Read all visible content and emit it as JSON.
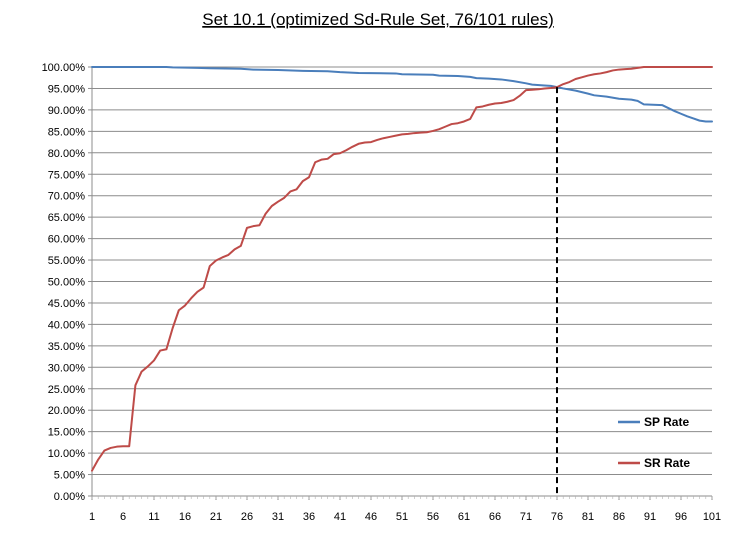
{
  "chart_data": {
    "type": "line",
    "title": "Set 10.1 (optimized Sd-Rule Set, 76/101 rules)",
    "xlabel": "",
    "ylabel": "",
    "x_range": [
      1,
      101
    ],
    "ylim": [
      0,
      100
    ],
    "y_ticks": [
      "0.00%",
      "5.00%",
      "10.00%",
      "15.00%",
      "20.00%",
      "25.00%",
      "30.00%",
      "35.00%",
      "40.00%",
      "45.00%",
      "50.00%",
      "55.00%",
      "60.00%",
      "65.00%",
      "70.00%",
      "75.00%",
      "80.00%",
      "85.00%",
      "90.00%",
      "95.00%",
      "100.00%"
    ],
    "x_ticks": [
      "1",
      "6",
      "11",
      "16",
      "21",
      "26",
      "31",
      "36",
      "41",
      "46",
      "51",
      "56",
      "61",
      "66",
      "71",
      "76",
      "81",
      "86",
      "91",
      "96",
      "101"
    ],
    "grid": "horizontal",
    "legend_position": "right",
    "reference_line": {
      "x": 76,
      "style": "dashed"
    },
    "series": [
      {
        "name": "SP Rate",
        "color": "#4a7ebb",
        "points": [
          [
            1,
            100.0
          ],
          [
            13,
            100.0
          ],
          [
            14,
            99.9
          ],
          [
            18,
            99.8
          ],
          [
            20,
            99.7
          ],
          [
            25,
            99.6
          ],
          [
            27,
            99.4
          ],
          [
            31,
            99.3
          ],
          [
            35,
            99.1
          ],
          [
            39,
            99.0
          ],
          [
            41,
            98.8
          ],
          [
            44,
            98.6
          ],
          [
            50,
            98.5
          ],
          [
            51,
            98.3
          ],
          [
            56,
            98.2
          ],
          [
            57,
            98.0
          ],
          [
            60,
            97.9
          ],
          [
            62,
            97.7
          ],
          [
            63,
            97.4
          ],
          [
            65,
            97.3
          ],
          [
            67,
            97.1
          ],
          [
            69,
            96.7
          ],
          [
            71,
            96.2
          ],
          [
            72,
            95.9
          ],
          [
            74,
            95.7
          ],
          [
            75,
            95.6
          ],
          [
            76,
            95.3
          ],
          [
            77,
            95.0
          ],
          [
            79,
            94.5
          ],
          [
            81,
            93.8
          ],
          [
            82,
            93.4
          ],
          [
            84,
            93.1
          ],
          [
            86,
            92.6
          ],
          [
            88,
            92.4
          ],
          [
            89,
            92.1
          ],
          [
            90,
            91.3
          ],
          [
            93,
            91.1
          ],
          [
            94,
            90.4
          ],
          [
            95,
            89.7
          ],
          [
            96,
            89.1
          ],
          [
            97,
            88.5
          ],
          [
            98,
            88.0
          ],
          [
            99,
            87.5
          ],
          [
            100,
            87.3
          ],
          [
            101,
            87.3
          ]
        ]
      },
      {
        "name": "SR Rate",
        "color": "#be4b48",
        "points": [
          [
            1,
            5.9
          ],
          [
            2,
            8.5
          ],
          [
            3,
            10.6
          ],
          [
            4,
            11.2
          ],
          [
            5,
            11.5
          ],
          [
            6,
            11.6
          ],
          [
            7,
            11.6
          ],
          [
            8,
            25.8
          ],
          [
            9,
            29.0
          ],
          [
            10,
            30.2
          ],
          [
            11,
            31.6
          ],
          [
            12,
            33.9
          ],
          [
            13,
            34.2
          ],
          [
            14,
            39.1
          ],
          [
            15,
            43.3
          ],
          [
            16,
            44.4
          ],
          [
            17,
            46.1
          ],
          [
            18,
            47.6
          ],
          [
            19,
            48.6
          ],
          [
            20,
            53.6
          ],
          [
            21,
            54.9
          ],
          [
            22,
            55.6
          ],
          [
            23,
            56.2
          ],
          [
            24,
            57.5
          ],
          [
            25,
            58.3
          ],
          [
            26,
            62.5
          ],
          [
            27,
            62.9
          ],
          [
            28,
            63.1
          ],
          [
            29,
            65.8
          ],
          [
            30,
            67.6
          ],
          [
            31,
            68.6
          ],
          [
            32,
            69.5
          ],
          [
            33,
            71.0
          ],
          [
            34,
            71.5
          ],
          [
            35,
            73.4
          ],
          [
            36,
            74.3
          ],
          [
            37,
            77.8
          ],
          [
            38,
            78.4
          ],
          [
            39,
            78.6
          ],
          [
            40,
            79.7
          ],
          [
            41,
            79.9
          ],
          [
            42,
            80.6
          ],
          [
            43,
            81.4
          ],
          [
            44,
            82.1
          ],
          [
            45,
            82.4
          ],
          [
            46,
            82.5
          ],
          [
            47,
            83.0
          ],
          [
            48,
            83.4
          ],
          [
            49,
            83.7
          ],
          [
            50,
            84.0
          ],
          [
            51,
            84.3
          ],
          [
            52,
            84.4
          ],
          [
            53,
            84.6
          ],
          [
            54,
            84.7
          ],
          [
            55,
            84.8
          ],
          [
            56,
            85.1
          ],
          [
            57,
            85.5
          ],
          [
            58,
            86.1
          ],
          [
            59,
            86.7
          ],
          [
            60,
            86.9
          ],
          [
            61,
            87.3
          ],
          [
            62,
            87.9
          ],
          [
            63,
            90.6
          ],
          [
            64,
            90.8
          ],
          [
            65,
            91.2
          ],
          [
            66,
            91.5
          ],
          [
            67,
            91.6
          ],
          [
            68,
            91.9
          ],
          [
            69,
            92.3
          ],
          [
            70,
            93.3
          ],
          [
            71,
            94.6
          ],
          [
            72,
            94.7
          ],
          [
            73,
            94.8
          ],
          [
            74,
            95.0
          ],
          [
            75,
            95.1
          ],
          [
            76,
            95.3
          ],
          [
            77,
            96.0
          ],
          [
            78,
            96.5
          ],
          [
            79,
            97.2
          ],
          [
            80,
            97.6
          ],
          [
            81,
            98.0
          ],
          [
            82,
            98.3
          ],
          [
            83,
            98.5
          ],
          [
            84,
            98.8
          ],
          [
            85,
            99.2
          ],
          [
            86,
            99.4
          ],
          [
            87,
            99.5
          ],
          [
            88,
            99.6
          ],
          [
            89,
            99.8
          ],
          [
            90,
            100.0
          ],
          [
            101,
            100.0
          ]
        ]
      }
    ]
  }
}
